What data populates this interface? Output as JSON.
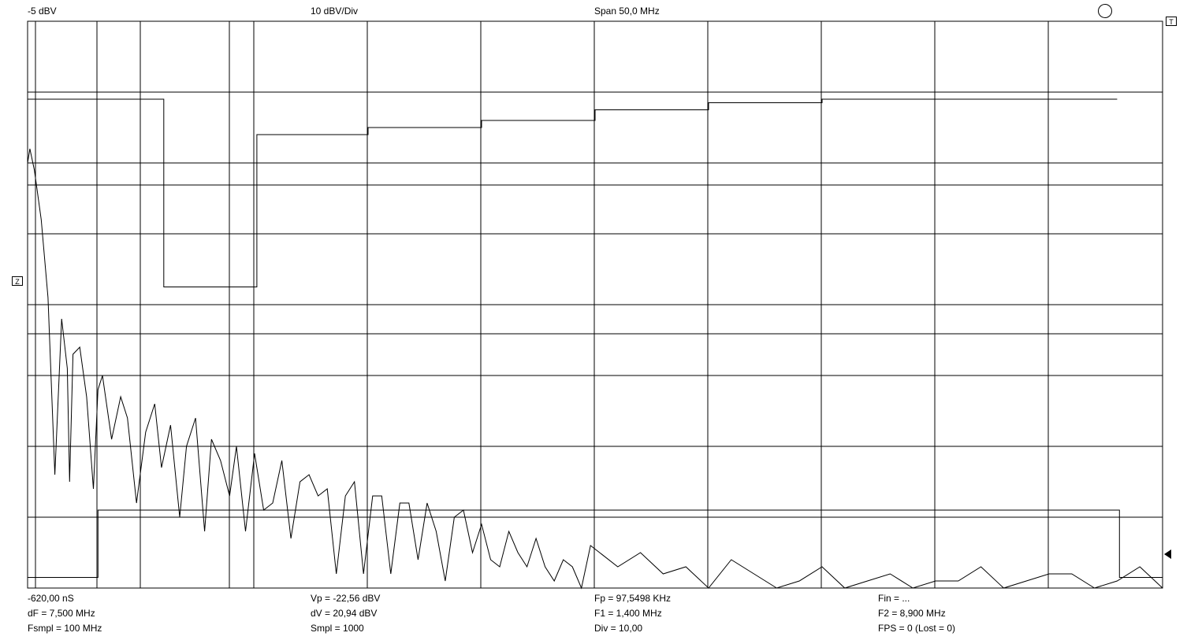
{
  "header": {
    "ref_level": "-5 dBV",
    "scale": "10 dBV/Div",
    "span": "Span 50,0 MHz"
  },
  "markers": {
    "trigger": "T",
    "zero": "Z"
  },
  "readouts": {
    "row1": [
      "-620,00 nS",
      "Vp = -22,56 dBV",
      "Fp = 97,5498 KHz",
      "Fin = ..."
    ],
    "row2": [
      "dF = 7,500 MHz",
      "dV = 20,94 dBV",
      "F1 = 1,400 MHz",
      "F2 = 8,900 MHz"
    ],
    "row3": [
      "Fsmpl = 100 MHz",
      "Smpl = 1000",
      "Div = 10,00",
      "FPS = 0 (Lost = 0)"
    ]
  },
  "chart_data": {
    "type": "line",
    "xlabel": "",
    "ylabel": "",
    "xlim": [
      0,
      50
    ],
    "ylim": [
      -85,
      -5
    ],
    "grid": true,
    "series": [
      {
        "role": "spectrum",
        "x": [
          0,
          0.1,
          0.3,
          0.6,
          0.9,
          1.2,
          1.5,
          1.75,
          1.85,
          2.0,
          2.3,
          2.6,
          2.9,
          3.1,
          3.3,
          3.7,
          4.1,
          4.4,
          4.8,
          5.2,
          5.6,
          5.9,
          6.3,
          6.7,
          7.0,
          7.4,
          7.8,
          8.1,
          8.5,
          8.9,
          9.2,
          9.6,
          10.0,
          10.4,
          10.8,
          11.2,
          11.6,
          12.0,
          12.4,
          12.8,
          13.2,
          13.6,
          14.0,
          14.4,
          14.8,
          15.2,
          15.6,
          16.0,
          16.4,
          16.8,
          17.2,
          17.6,
          18.0,
          18.4,
          18.8,
          19.2,
          19.6,
          20.0,
          20.4,
          20.8,
          21.2,
          21.6,
          22.0,
          22.4,
          22.8,
          23.2,
          23.6,
          24.0,
          24.4,
          24.8,
          25.2,
          26,
          27,
          28,
          29,
          30,
          31,
          32,
          33,
          34,
          35,
          36,
          37,
          38,
          39,
          40,
          41,
          42,
          43,
          44,
          45,
          46,
          47,
          48,
          49,
          50
        ],
        "y": [
          -25,
          -23,
          -26,
          -33,
          -44,
          -69,
          -47,
          -54,
          -70,
          -52,
          -51,
          -58,
          -71,
          -57,
          -55,
          -64,
          -58,
          -61,
          -73,
          -63,
          -59,
          -68,
          -62,
          -75,
          -65,
          -61,
          -77,
          -64,
          -67,
          -72,
          -65,
          -77,
          -66,
          -74,
          -73,
          -67,
          -78,
          -70,
          -69,
          -72,
          -71,
          -83,
          -72,
          -70,
          -83,
          -72,
          -72,
          -83,
          -73,
          -73,
          -81,
          -73,
          -77,
          -84,
          -75,
          -74,
          -80,
          -76,
          -81,
          -82,
          -77,
          -80,
          -82,
          -78,
          -82,
          -84,
          -81,
          -82,
          -85,
          -79,
          -80,
          -82,
          -80,
          -83,
          -82,
          -85,
          -81,
          -83,
          -85,
          -84,
          -82,
          -85,
          -84,
          -83,
          -85,
          -84,
          -84,
          -82,
          -85,
          -84,
          -83,
          -83,
          -85,
          -84,
          -82,
          -85
        ]
      },
      {
        "role": "trace-upper",
        "x": [
          0,
          4.3,
          5.8,
          6.0,
          9.8,
          10.0,
          10.1,
          15,
          20,
          25,
          30,
          35,
          40,
          45,
          48.0
        ],
        "y": [
          -16,
          -16,
          -16,
          -42.5,
          -42.5,
          -42.5,
          -21,
          -20,
          -19,
          -17.5,
          -16.5,
          -16,
          -16,
          -16,
          -16
        ],
        "step": true
      },
      {
        "role": "trace-lower",
        "x": [
          0,
          3.0,
          3.1,
          35,
          48.0,
          48.1,
          50
        ],
        "y": [
          -83.5,
          -83.5,
          -74,
          -74,
          -74,
          -83.5,
          -83.5
        ],
        "step": true
      }
    ]
  }
}
